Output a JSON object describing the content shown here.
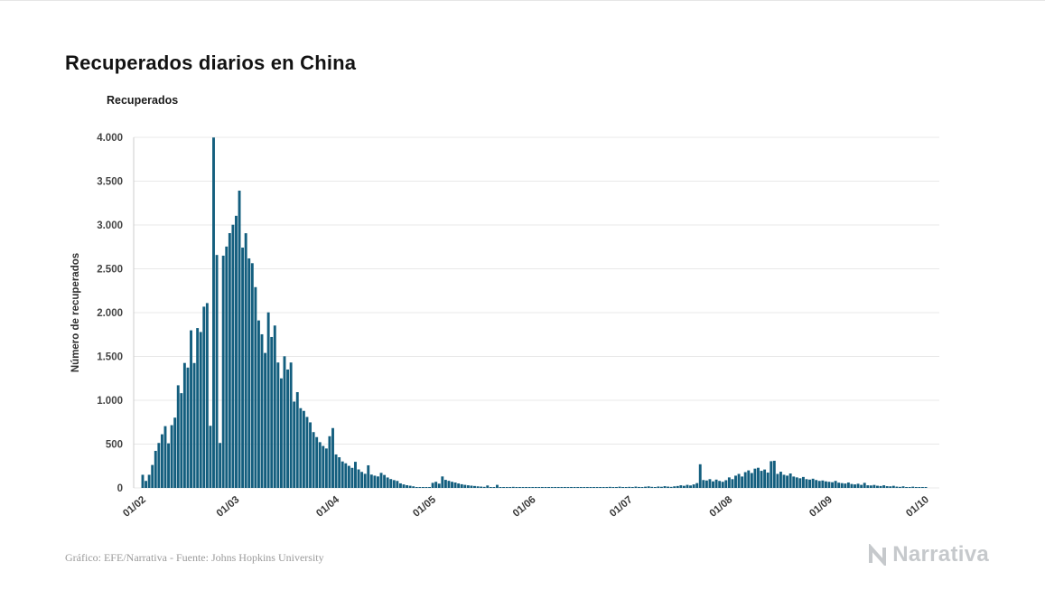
{
  "title": "Recuperados diarios en China",
  "legend": {
    "label": "Recuperados"
  },
  "footer": {
    "credit": "Gráfico: EFE/Narrativa - Fuente: Johns Hopkins University"
  },
  "brand": {
    "name": "Narrativa"
  },
  "chart_data": {
    "type": "bar",
    "title": "Recuperados diarios en China",
    "series_name": "Recuperados",
    "xlabel": "",
    "ylabel": "Número de recuperados",
    "ylim": [
      0,
      4000
    ],
    "grid": "horizontal",
    "legend_position": "top-left",
    "bar_color": "#135e7e",
    "y_ticks": [
      0,
      500,
      1000,
      1500,
      2000,
      2500,
      3000,
      3500,
      4000
    ],
    "y_tick_labels": [
      "0",
      "500",
      "1.000",
      "1.500",
      "2.000",
      "2.500",
      "3.000",
      "3.500",
      "4.000"
    ],
    "x_tick_labels": [
      "01/02",
      "01/03",
      "01/04",
      "01/05",
      "01/06",
      "01/07",
      "01/08",
      "01/09",
      "01/10"
    ],
    "x_tick_day_index": [
      0,
      29,
      60,
      90,
      121,
      151,
      182,
      213,
      243
    ],
    "values": [
      150,
      80,
      150,
      262,
      423,
      513,
      612,
      705,
      509,
      716,
      802,
      1171,
      1081,
      1426,
      1373,
      1798,
      1425,
      1824,
      1779,
      2068,
      2109,
      709,
      3998,
      2658,
      513,
      2650,
      2754,
      2907,
      3003,
      3105,
      3392,
      2742,
      2906,
      2619,
      2564,
      2291,
      1911,
      1753,
      1540,
      2003,
      1722,
      1853,
      1431,
      1250,
      1502,
      1351,
      1431,
      985,
      1093,
      910,
      879,
      810,
      748,
      637,
      580,
      522,
      479,
      450,
      590,
      683,
      382,
      350,
      302,
      281,
      252,
      229,
      298,
      211,
      183,
      161,
      258,
      152,
      140,
      131,
      172,
      148,
      119,
      101,
      89,
      80,
      52,
      40,
      31,
      25,
      18,
      10,
      6,
      4,
      3,
      2,
      58,
      70,
      49,
      131,
      92,
      81,
      70,
      62,
      51,
      42,
      35,
      30,
      26,
      22,
      18,
      15,
      12,
      28,
      10,
      8,
      35,
      6,
      5,
      8,
      4,
      12,
      3,
      5,
      2,
      4,
      3,
      2,
      3,
      2,
      4,
      3,
      2,
      5,
      3,
      2,
      3,
      4,
      2,
      3,
      6,
      4,
      3,
      8,
      5,
      4,
      3,
      10,
      7,
      5,
      4,
      12,
      8,
      6,
      14,
      10,
      8,
      12,
      9,
      15,
      11,
      8,
      14,
      18,
      12,
      10,
      16,
      13,
      20,
      15,
      12,
      18,
      22,
      30,
      24,
      35,
      28,
      40,
      55,
      270,
      90,
      85,
      100,
      75,
      95,
      80,
      70,
      88,
      120,
      100,
      140,
      160,
      130,
      180,
      200,
      170,
      220,
      230,
      195,
      210,
      175,
      305,
      310,
      160,
      185,
      150,
      140,
      165,
      130,
      120,
      110,
      125,
      100,
      95,
      105,
      90,
      80,
      85,
      75,
      70,
      65,
      80,
      60,
      55,
      50,
      62,
      45,
      40,
      48,
      35,
      58,
      30,
      28,
      34,
      25,
      22,
      30,
      20,
      18,
      24,
      15,
      12,
      18,
      10,
      8,
      14,
      6,
      5,
      4,
      2
    ]
  }
}
